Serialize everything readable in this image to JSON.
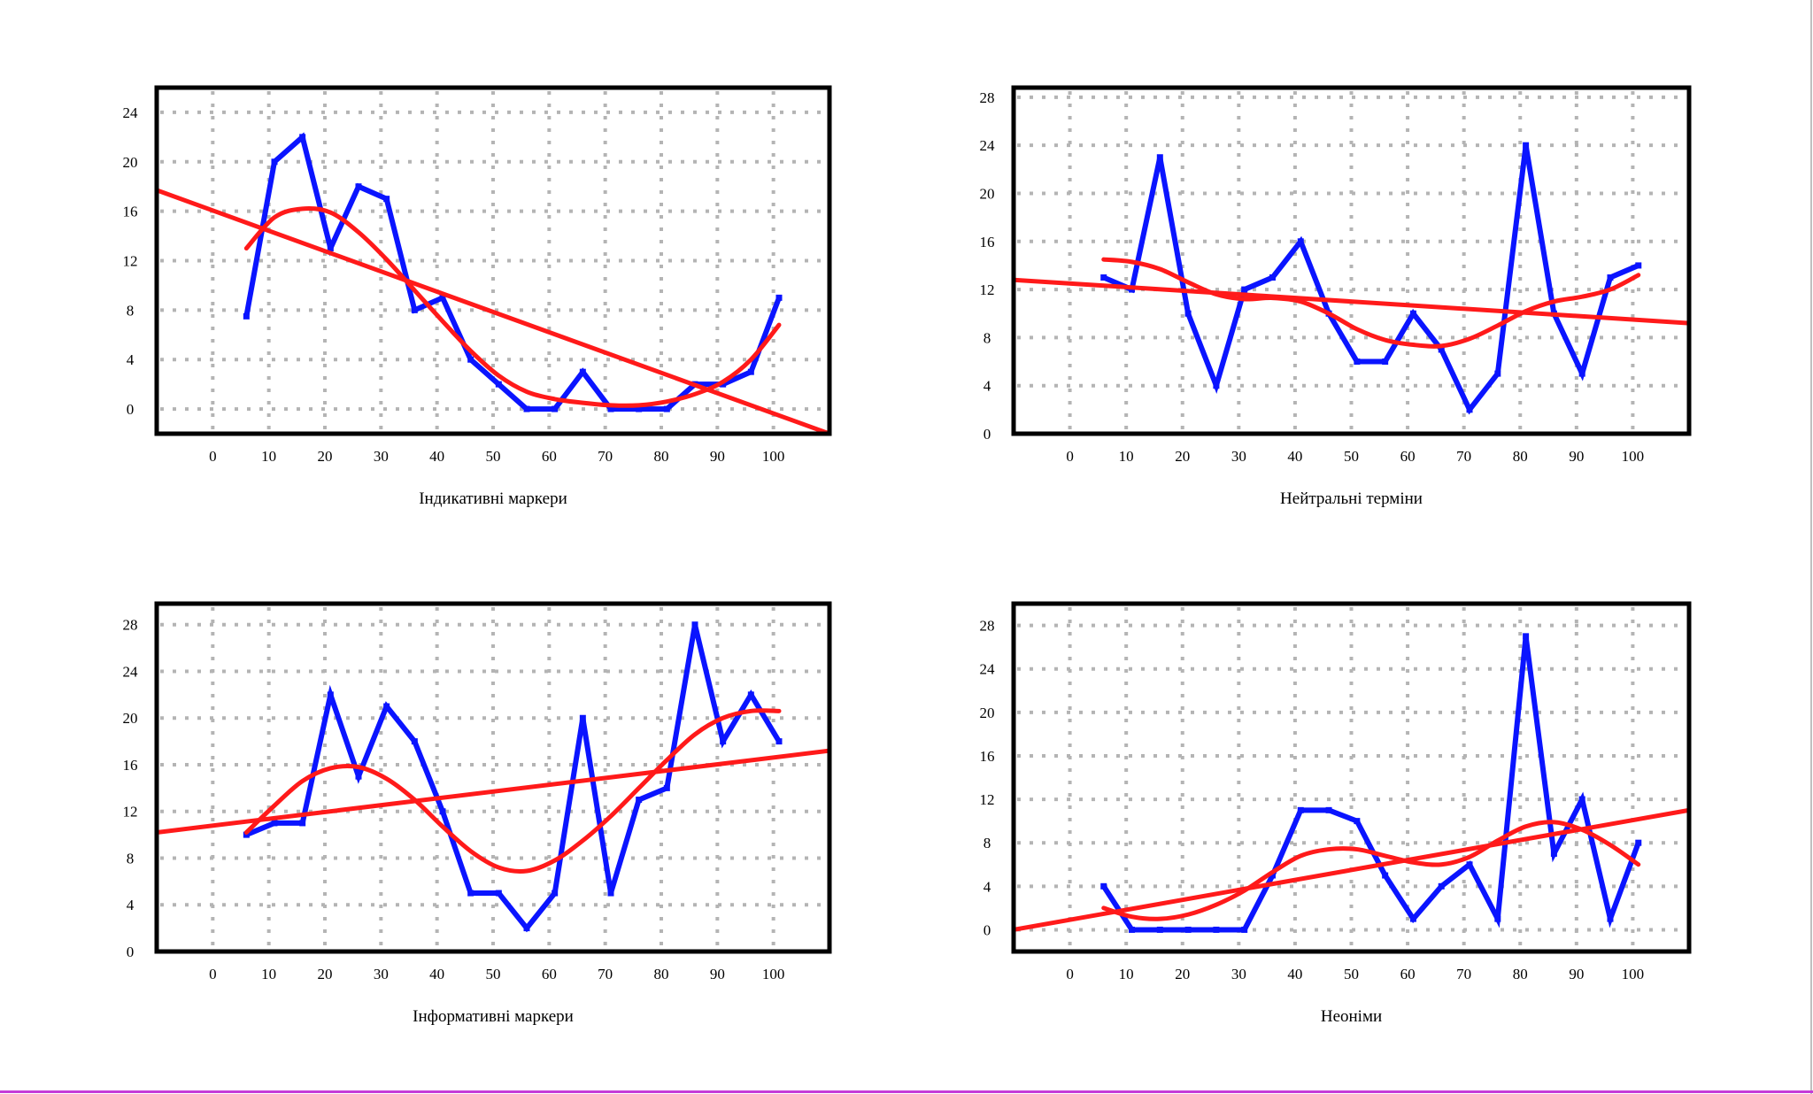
{
  "colors": {
    "raw_series": "#0a14ff",
    "trend_line": "#ff1a1a",
    "frame": "#000000",
    "grid": "#b4b4b4"
  },
  "chart_data": [
    {
      "type": "line",
      "xlabel": "Індикативні маркери",
      "ylabel": "",
      "x_ticks": [
        0,
        10,
        20,
        30,
        40,
        50,
        60,
        70,
        80,
        90,
        100
      ],
      "y_ticks": [
        0,
        4,
        8,
        12,
        16,
        20,
        24
      ],
      "xlim": [
        -10,
        110
      ],
      "ylim": [
        -2,
        26
      ],
      "grid": true,
      "series": [
        {
          "role": "observed",
          "color": "#0a14ff",
          "x": [
            6,
            11,
            16,
            21,
            26,
            31,
            36,
            41,
            46,
            51,
            56,
            61,
            66,
            71,
            76,
            81,
            86,
            91,
            96,
            101
          ],
          "y": [
            7.5,
            20,
            22,
            13,
            18,
            17,
            8,
            9,
            4,
            2,
            0,
            0,
            3,
            0,
            0,
            0,
            2,
            2,
            3,
            9
          ]
        },
        {
          "role": "polynomial-trend",
          "color": "#ff1a1a",
          "x": [
            6,
            11,
            16,
            21,
            26,
            31,
            36,
            41,
            46,
            51,
            56,
            61,
            66,
            71,
            76,
            81,
            86,
            91,
            96,
            101
          ],
          "y": [
            13,
            15.5,
            16.2,
            15.9,
            14.3,
            12.1,
            9.6,
            7.1,
            4.7,
            2.7,
            1.4,
            0.8,
            0.5,
            0.3,
            0.3,
            0.6,
            1.2,
            2.2,
            4,
            6.8
          ]
        },
        {
          "role": "linear-trend",
          "color": "#ff1a1a",
          "x": [
            -10,
            110
          ],
          "y": [
            17.7,
            -2
          ]
        }
      ]
    },
    {
      "type": "line",
      "xlabel": "Нейтральні терміни",
      "ylabel": "",
      "x_ticks": [
        0,
        10,
        20,
        30,
        40,
        50,
        60,
        70,
        80,
        90,
        100
      ],
      "y_ticks": [
        0,
        4,
        8,
        12,
        16,
        20,
        24,
        28
      ],
      "xlim": [
        -10,
        110
      ],
      "ylim": [
        0,
        28.8
      ],
      "grid": true,
      "series": [
        {
          "role": "observed",
          "color": "#0a14ff",
          "x": [
            6,
            11,
            16,
            21,
            26,
            31,
            36,
            41,
            46,
            51,
            56,
            61,
            66,
            71,
            76,
            81,
            86,
            91,
            96,
            101
          ],
          "y": [
            13,
            12,
            23,
            10,
            4,
            12,
            13,
            16,
            10,
            6,
            6,
            10,
            7,
            2,
            5,
            24,
            10,
            5,
            13,
            14
          ]
        },
        {
          "role": "polynomial-trend",
          "color": "#ff1a1a",
          "x": [
            6,
            11,
            16,
            21,
            26,
            31,
            36,
            41,
            46,
            51,
            56,
            61,
            66,
            71,
            76,
            81,
            86,
            91,
            96,
            101
          ],
          "y": [
            14.5,
            14.3,
            13.7,
            12.6,
            11.6,
            11.2,
            11.3,
            11,
            10,
            8.7,
            7.8,
            7.4,
            7.3,
            7.9,
            9,
            10.2,
            11,
            11.4,
            12,
            13.2
          ]
        },
        {
          "role": "linear-trend",
          "color": "#ff1a1a",
          "x": [
            -10,
            110
          ],
          "y": [
            12.8,
            9.2
          ]
        }
      ]
    },
    {
      "type": "line",
      "xlabel": "Інформативні маркери",
      "ylabel": "",
      "x_ticks": [
        0,
        10,
        20,
        30,
        40,
        50,
        60,
        70,
        80,
        90,
        100
      ],
      "y_ticks": [
        0,
        4,
        8,
        12,
        16,
        20,
        24,
        28
      ],
      "xlim": [
        -10,
        110
      ],
      "ylim": [
        0,
        29.8
      ],
      "grid": true,
      "series": [
        {
          "role": "observed",
          "color": "#0a14ff",
          "x": [
            6,
            11,
            16,
            21,
            26,
            31,
            36,
            41,
            46,
            51,
            56,
            61,
            66,
            71,
            76,
            81,
            86,
            91,
            96,
            101
          ],
          "y": [
            10,
            11,
            11,
            22,
            15,
            21,
            18,
            12,
            5,
            5,
            2,
            5,
            20,
            5,
            13,
            14,
            28,
            18,
            22,
            18
          ]
        },
        {
          "role": "polynomial-trend",
          "color": "#ff1a1a",
          "x": [
            6,
            11,
            16,
            21,
            26,
            31,
            36,
            41,
            46,
            51,
            56,
            61,
            66,
            71,
            76,
            81,
            86,
            91,
            96,
            101
          ],
          "y": [
            10.2,
            12.5,
            14.6,
            15.7,
            15.8,
            14.8,
            13,
            10.7,
            8.6,
            7.2,
            6.9,
            7.8,
            9.5,
            11.6,
            14,
            16.4,
            18.6,
            20,
            20.6,
            20.6
          ]
        },
        {
          "role": "linear-trend",
          "color": "#ff1a1a",
          "x": [
            -10,
            110
          ],
          "y": [
            10.2,
            17.2
          ]
        }
      ]
    },
    {
      "type": "line",
      "xlabel": "Неоніми",
      "ylabel": "",
      "x_ticks": [
        0,
        10,
        20,
        30,
        40,
        50,
        60,
        70,
        80,
        90,
        100
      ],
      "y_ticks": [
        0,
        4,
        8,
        12,
        16,
        20,
        24,
        28
      ],
      "xlim": [
        -10,
        110
      ],
      "ylim": [
        -2,
        30
      ],
      "grid": true,
      "series": [
        {
          "role": "observed",
          "color": "#0a14ff",
          "x": [
            6,
            11,
            16,
            21,
            26,
            31,
            36,
            41,
            46,
            51,
            56,
            61,
            66,
            71,
            76,
            81,
            86,
            91,
            96,
            101
          ],
          "y": [
            4,
            0,
            0,
            0,
            0,
            0,
            5,
            11,
            11,
            10,
            5,
            1,
            4,
            6,
            1,
            27,
            7,
            12,
            1,
            8
          ]
        },
        {
          "role": "polynomial-trend",
          "color": "#ff1a1a",
          "x": [
            6,
            11,
            16,
            21,
            26,
            31,
            36,
            41,
            46,
            51,
            56,
            61,
            66,
            71,
            76,
            81,
            86,
            91,
            96,
            101
          ],
          "y": [
            2,
            1.2,
            1,
            1.4,
            2.3,
            3.6,
            5.3,
            6.8,
            7.4,
            7.4,
            6.8,
            6.2,
            6,
            6.7,
            8.2,
            9.5,
            9.9,
            9.2,
            7.8,
            6
          ]
        },
        {
          "role": "linear-trend",
          "color": "#ff1a1a",
          "x": [
            -10,
            110
          ],
          "y": [
            0,
            11
          ]
        }
      ]
    }
  ]
}
